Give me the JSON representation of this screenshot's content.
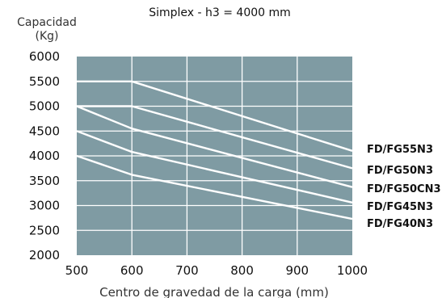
{
  "chart_data": {
    "type": "line",
    "title": "Simplex - h3 = 4000 mm",
    "ylabel_line1": "Capacidad",
    "ylabel_line2": "(Kg)",
    "xlabel": "Centro de gravedad de la carga (mm)",
    "xlim": [
      500,
      1000
    ],
    "ylim": [
      2000,
      6000
    ],
    "x_ticks": [
      500,
      600,
      700,
      800,
      900,
      1000
    ],
    "y_ticks": [
      2000,
      2500,
      3000,
      3500,
      4000,
      4500,
      5000,
      5500,
      6000
    ],
    "grid": true,
    "plot_background": "#7f9ba3",
    "grid_color": "#ffffff",
    "line_color": "#ffffff",
    "series": [
      {
        "name": "FD/FG55N3",
        "x": [
          500,
          600,
          1000
        ],
        "y": [
          5500,
          5500,
          4100
        ]
      },
      {
        "name": "FD/FG50N3",
        "x": [
          500,
          600,
          1000
        ],
        "y": [
          5000,
          5000,
          3750
        ]
      },
      {
        "name": "FD/FG50CN3",
        "x": [
          500,
          600,
          1000
        ],
        "y": [
          5000,
          4550,
          3370
        ]
      },
      {
        "name": "FD/FG45N3",
        "x": [
          500,
          600,
          1000
        ],
        "y": [
          4500,
          4080,
          3060
        ]
      },
      {
        "name": "FD/FG40N3",
        "x": [
          500,
          600,
          1000
        ],
        "y": [
          4000,
          3620,
          2730
        ]
      }
    ]
  }
}
